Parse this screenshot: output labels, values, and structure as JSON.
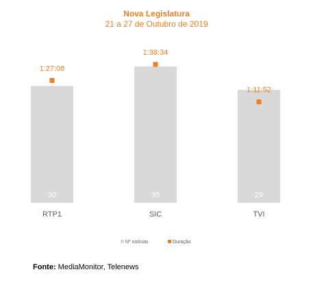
{
  "chart_data": {
    "type": "bar",
    "title": "Nova Legislatura",
    "subtitle": "21 a 27 de Outubro de 2019",
    "categories": [
      "RTP1",
      "SIC",
      "TVI"
    ],
    "series": [
      {
        "name": "Nº notícias",
        "kind": "bar",
        "color": "#d9d9d9",
        "values": [
          30,
          35,
          29
        ],
        "labels": [
          "30",
          "35",
          "29"
        ]
      },
      {
        "name": "Duração",
        "kind": "marker",
        "color": "#f07d1d",
        "values": [
          "1:27:08",
          "1:38:34",
          "1:11:52"
        ],
        "labels": [
          "1:27:08",
          "1:38:34",
          "1:11:52"
        ]
      }
    ],
    "legend_position": "bottom",
    "grid": false
  },
  "source": {
    "label": "Fonte:",
    "text": "MediaMonitor, Telenews"
  }
}
